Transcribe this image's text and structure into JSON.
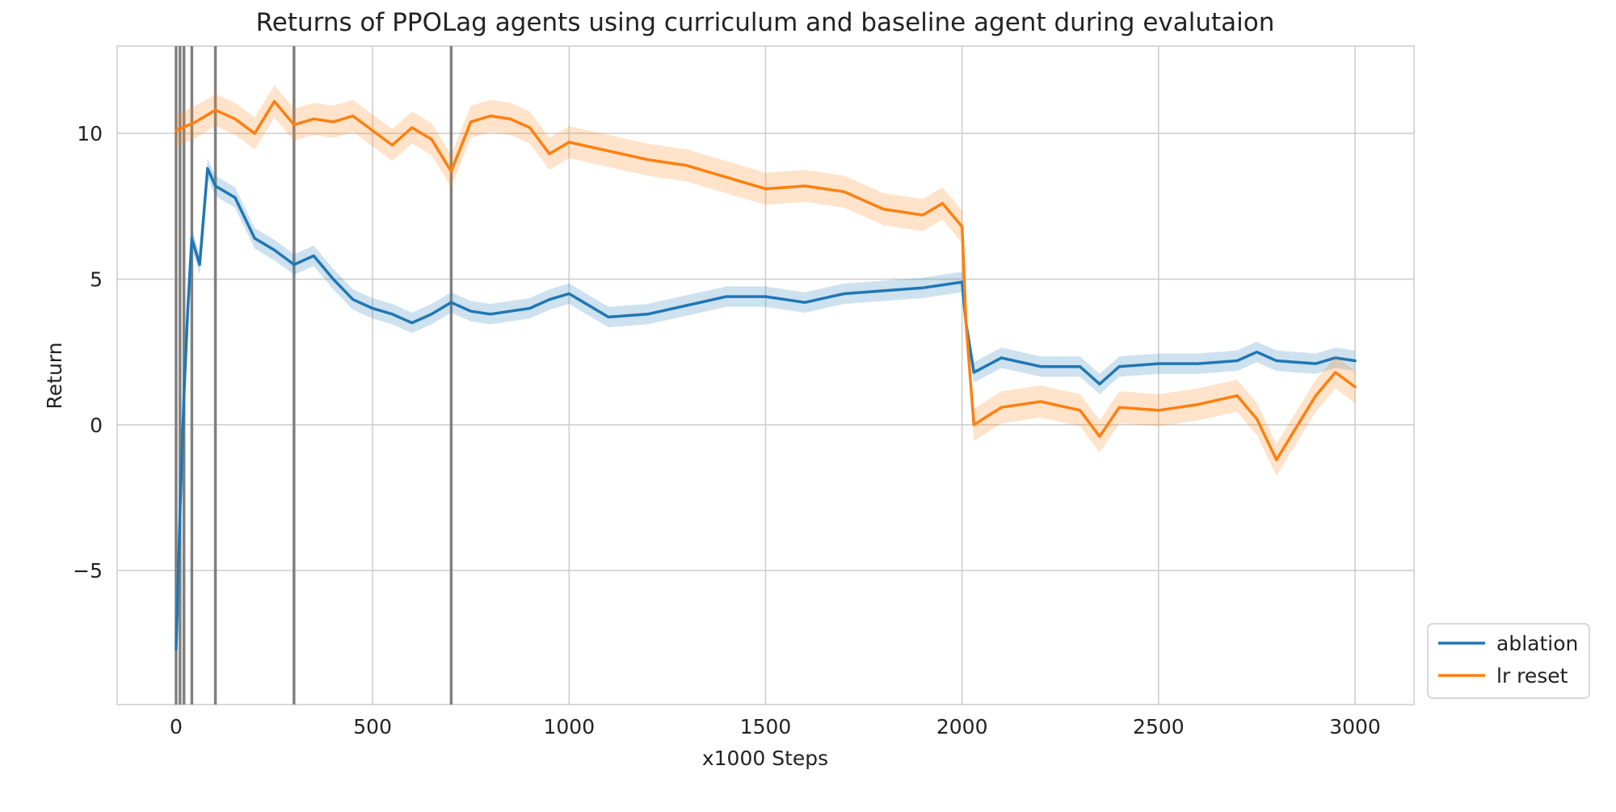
{
  "chart_data": {
    "type": "line",
    "title": "Returns of PPOLag agents using curriculum and baseline agent during evalutaion",
    "xlabel": "x1000 Steps",
    "ylabel": "Return",
    "xlim": [
      -150,
      3150
    ],
    "ylim": [
      -9.6,
      13
    ],
    "x_ticks": [
      0,
      500,
      1000,
      1500,
      2000,
      2500,
      3000
    ],
    "x_tick_labels": [
      "0",
      "500",
      "1000",
      "1500",
      "2000",
      "2500",
      "3000"
    ],
    "y_ticks": [
      -5,
      0,
      5,
      10
    ],
    "y_tick_labels": [
      "−5",
      "0",
      "5",
      "10"
    ],
    "grid": true,
    "legend_position": "outside right, bottom",
    "vertical_lines": [
      0,
      10,
      20,
      40,
      100,
      300,
      700
    ],
    "vertical_line_color": "#808080",
    "series": [
      {
        "name": "ablation",
        "color": "#1f77b4",
        "x": [
          0,
          10,
          20,
          30,
          40,
          60,
          80,
          100,
          150,
          200,
          250,
          300,
          350,
          400,
          450,
          500,
          550,
          600,
          650,
          700,
          750,
          800,
          850,
          900,
          950,
          1000,
          1100,
          1200,
          1300,
          1400,
          1500,
          1600,
          1700,
          1800,
          1900,
          2000,
          2010,
          2030,
          2100,
          2200,
          2300,
          2350,
          2400,
          2500,
          2600,
          2700,
          2750,
          2800,
          2900,
          2950,
          3000
        ],
        "y": [
          -7.7,
          -3.0,
          1.0,
          4.0,
          6.4,
          5.5,
          8.8,
          8.2,
          7.8,
          6.4,
          6.0,
          5.5,
          5.8,
          5.0,
          4.3,
          4.0,
          3.8,
          3.5,
          3.8,
          4.2,
          3.9,
          3.8,
          3.9,
          4.0,
          4.3,
          4.5,
          3.7,
          3.8,
          4.1,
          4.4,
          4.4,
          4.2,
          4.5,
          4.6,
          4.7,
          4.9,
          3.5,
          1.8,
          2.3,
          2.0,
          2.0,
          1.4,
          2.0,
          2.1,
          2.1,
          2.2,
          2.5,
          2.2,
          2.1,
          2.3,
          2.2
        ],
        "ci_halfwidth": 0.35
      },
      {
        "name": "lr reset",
        "color": "#ff7f0e",
        "x": [
          0,
          50,
          100,
          150,
          200,
          250,
          300,
          350,
          400,
          450,
          500,
          550,
          600,
          650,
          700,
          750,
          800,
          850,
          900,
          950,
          1000,
          1100,
          1200,
          1300,
          1400,
          1500,
          1600,
          1700,
          1800,
          1900,
          1950,
          2000,
          2010,
          2030,
          2100,
          2200,
          2300,
          2350,
          2400,
          2500,
          2600,
          2700,
          2750,
          2800,
          2900,
          2950,
          3000
        ],
        "y": [
          10.1,
          10.4,
          10.8,
          10.5,
          10.0,
          11.1,
          10.3,
          10.5,
          10.4,
          10.6,
          10.1,
          9.6,
          10.2,
          9.8,
          8.7,
          10.4,
          10.6,
          10.5,
          10.2,
          9.3,
          9.7,
          9.4,
          9.1,
          8.9,
          8.5,
          8.1,
          8.2,
          8.0,
          7.4,
          7.2,
          7.6,
          6.8,
          3.5,
          0.0,
          0.6,
          0.8,
          0.5,
          -0.4,
          0.6,
          0.5,
          0.7,
          1.0,
          0.2,
          -1.2,
          1.0,
          1.8,
          1.3
        ],
        "ci_halfwidth": 0.55
      }
    ]
  }
}
